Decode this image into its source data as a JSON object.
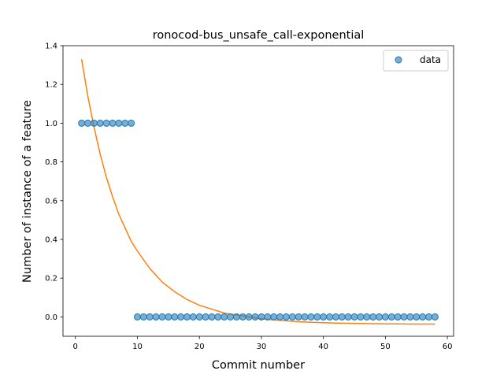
{
  "chart_data": {
    "type": "scatter",
    "title": "ronocod-bus_unsafe_call-exponential",
    "xlabel": "Commit number",
    "ylabel": "Number of instance of a feature",
    "xlim": [
      -2,
      61
    ],
    "ylim": [
      -0.1,
      1.4
    ],
    "xticks": [
      0,
      10,
      20,
      30,
      40,
      50,
      60
    ],
    "yticks": [
      0.0,
      0.2,
      0.4,
      0.6,
      0.8,
      1.0,
      1.2,
      1.4
    ],
    "grid": false,
    "legend": "top-right",
    "series": [
      {
        "name": "data",
        "kind": "scatter",
        "color": "#1f77b4",
        "x": [
          1,
          2,
          3,
          4,
          5,
          6,
          7,
          8,
          9,
          10,
          11,
          12,
          13,
          14,
          15,
          16,
          17,
          18,
          19,
          20,
          21,
          22,
          23,
          24,
          25,
          26,
          27,
          28,
          29,
          30,
          31,
          32,
          33,
          34,
          35,
          36,
          37,
          38,
          39,
          40,
          41,
          42,
          43,
          44,
          45,
          46,
          47,
          48,
          49,
          50,
          51,
          52,
          53,
          54,
          55,
          56,
          57,
          58
        ],
        "y": [
          1,
          1,
          1,
          1,
          1,
          1,
          1,
          1,
          1,
          0,
          0,
          0,
          0,
          0,
          0,
          0,
          0,
          0,
          0,
          0,
          0,
          0,
          0,
          0,
          0,
          0,
          0,
          0,
          0,
          0,
          0,
          0,
          0,
          0,
          0,
          0,
          0,
          0,
          0,
          0,
          0,
          0,
          0,
          0,
          0,
          0,
          0,
          0,
          0,
          0,
          0,
          0,
          0,
          0,
          0,
          0,
          0,
          0
        ]
      },
      {
        "kind": "line",
        "color": "#ff7f0e",
        "x": [
          1,
          2,
          3,
          4,
          5,
          6,
          7,
          8,
          9,
          10,
          12,
          14,
          16,
          18,
          20,
          22,
          24,
          26,
          28,
          30,
          32,
          34,
          36,
          38,
          40,
          42,
          44,
          46,
          48,
          50,
          52,
          54,
          56,
          58
        ],
        "y": [
          1.33,
          1.14,
          0.98,
          0.84,
          0.72,
          0.62,
          0.53,
          0.46,
          0.39,
          0.34,
          0.25,
          0.18,
          0.13,
          0.09,
          0.06,
          0.04,
          0.02,
          0.01,
          0.0,
          -0.01,
          -0.015,
          -0.02,
          -0.025,
          -0.028,
          -0.03,
          -0.032,
          -0.033,
          -0.034,
          -0.035,
          -0.036,
          -0.036,
          -0.037,
          -0.037,
          -0.037
        ]
      }
    ]
  }
}
